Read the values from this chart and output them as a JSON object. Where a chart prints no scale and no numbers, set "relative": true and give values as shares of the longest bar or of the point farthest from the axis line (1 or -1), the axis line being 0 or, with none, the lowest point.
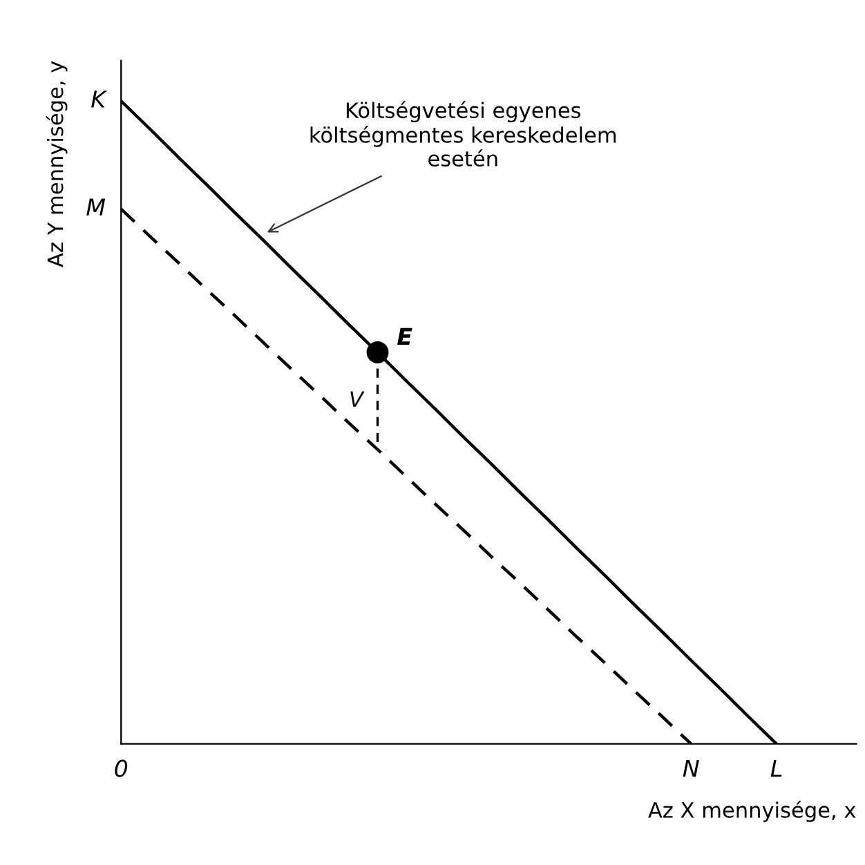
{
  "chart_data": {
    "type": "line",
    "relative": true,
    "xlabel": "Az X mennyisége, x",
    "ylabel": "Az Y mennyisége, y",
    "categories": [
      "0",
      null,
      null,
      null,
      null,
      null,
      null,
      null,
      null,
      null,
      null,
      null,
      null,
      null,
      null,
      null,
      null,
      null,
      null,
      null,
      "N",
      null,
      null,
      "L",
      null,
      null
    ],
    "series": [
      {
        "color": "#000000",
        "line_style": "solid",
        "values": [
          1,
          0.957,
          0.913,
          0.87,
          0.826,
          0.783,
          0.739,
          0.696,
          0.652,
          0.609,
          0.565,
          0.522,
          0.478,
          0.435,
          0.391,
          0.348,
          0.304,
          0.261,
          0.217,
          0.174,
          0.13,
          0.087,
          0.043,
          0,
          null,
          null
        ]
      },
      {
        "color": "#000000",
        "line_style": "dashed",
        "values": [
          0.832,
          0.79,
          0.749,
          0.707,
          0.666,
          0.624,
          0.582,
          0.541,
          0.499,
          0.458,
          0.416,
          0.374,
          0.333,
          0.291,
          0.25,
          0.208,
          0.166,
          0.125,
          0.083,
          0.042,
          0,
          null,
          null,
          null,
          null,
          null
        ]
      },
      {
        "type": "scatter",
        "name": "E",
        "color": "#000000",
        "marker": "circle",
        "values": [
          null,
          null,
          null,
          null,
          null,
          null,
          null,
          null,
          null,
          0.609,
          null,
          null,
          null,
          null,
          null,
          null,
          null,
          null,
          null,
          null,
          null,
          null,
          null,
          null,
          null,
          null
        ]
      }
    ],
    "annotations": [
      "Költségvetési egyenes\nköltségmentes kereskedelem\nesetén",
      "V",
      "K",
      "M"
    ]
  }
}
